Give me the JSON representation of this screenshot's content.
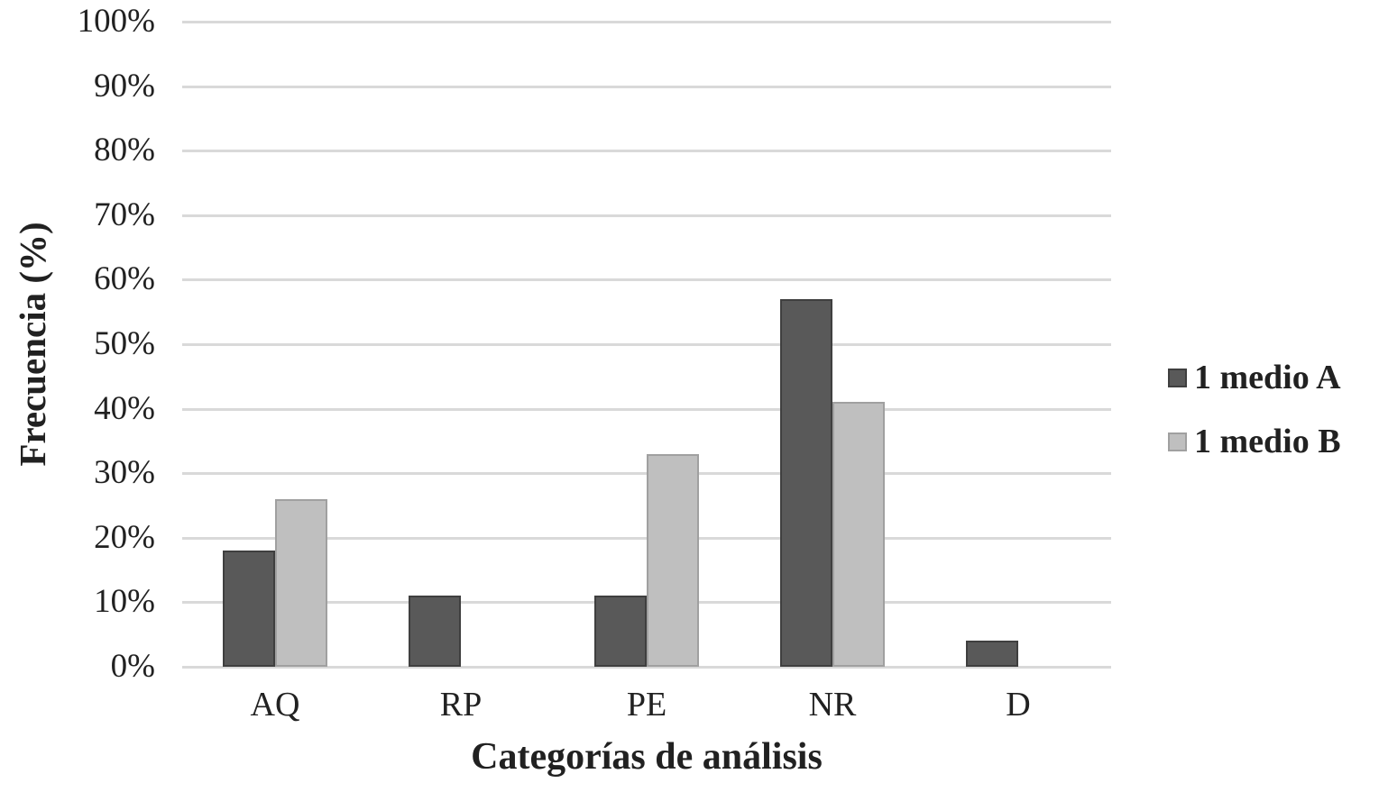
{
  "chart_data": {
    "type": "bar",
    "title": "",
    "categories": [
      "AQ",
      "RP",
      "PE",
      "NR",
      "D"
    ],
    "series": [
      {
        "name": "1 medio A",
        "values": [
          18,
          11,
          11,
          57,
          4
        ],
        "fill": "#595959",
        "border": "#3f3f3f"
      },
      {
        "name": "1 medio B",
        "values": [
          26,
          0,
          33,
          41,
          0
        ],
        "fill": "#bfbfbf",
        "border": "#a0a0a0"
      }
    ],
    "xlabel": "Categorías de análisis",
    "ylabel": "Frecuencia (%)",
    "ylim": [
      0,
      100
    ],
    "ytick_step": 10,
    "yticks": [
      "0%",
      "10%",
      "20%",
      "30%",
      "40%",
      "50%",
      "60%",
      "70%",
      "80%",
      "90%",
      "100%"
    ],
    "grid": true,
    "legend_position": "right"
  },
  "colors": {
    "gridline": "#d9d9d9",
    "text": "#212121",
    "background": "#ffffff"
  }
}
